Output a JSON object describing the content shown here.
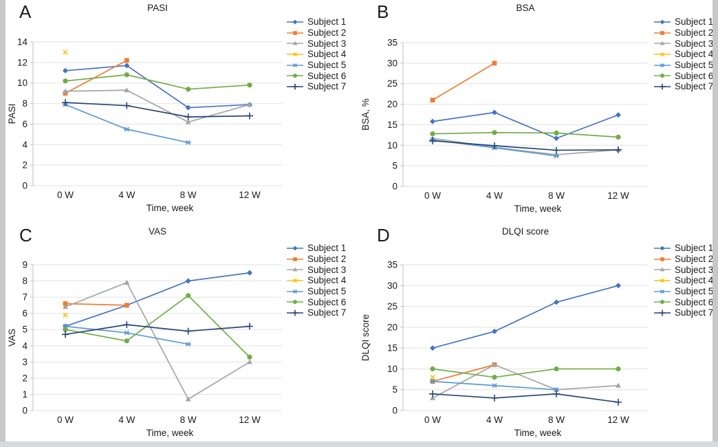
{
  "figure": {
    "x_axis_title": "Time, week",
    "x_categories": [
      "0 W",
      "4 W",
      "8 W",
      "12 W"
    ],
    "subjects": [
      {
        "name": "Subject 1",
        "color": "#4472C4",
        "marker": "diamond"
      },
      {
        "name": "Subject 2",
        "color": "#ED7D31",
        "marker": "square"
      },
      {
        "name": "Subject 3",
        "color": "#A5A5A5",
        "marker": "triangle"
      },
      {
        "name": "Subject 4",
        "color": "#FFC000",
        "marker": "x"
      },
      {
        "name": "Subject 5",
        "color": "#5B9BD5",
        "marker": "asterisk"
      },
      {
        "name": "Subject 6",
        "color": "#70AD47",
        "marker": "circle"
      },
      {
        "name": "Subject 7",
        "color": "#264478",
        "marker": "plus"
      }
    ],
    "gridline_color": "#e2e2e2",
    "axis_color": "#bfbfbf"
  },
  "chart_data": [
    {
      "type": "line",
      "letter": "A",
      "title": "PASI",
      "ylabel": "PASI",
      "xlabel": "Time, week",
      "categories": [
        "0 W",
        "4 W",
        "8 W",
        "12 W"
      ],
      "ylim": [
        0,
        14
      ],
      "ytick_step": 2,
      "grid": true,
      "legend_position": "right",
      "series": [
        {
          "name": "Subject 1",
          "values": [
            11.2,
            11.7,
            7.6,
            7.9
          ]
        },
        {
          "name": "Subject 2",
          "values": [
            9.0,
            12.2,
            null,
            null
          ]
        },
        {
          "name": "Subject 3",
          "values": [
            9.2,
            9.3,
            6.2,
            7.9
          ]
        },
        {
          "name": "Subject 4",
          "values": [
            13.0,
            null,
            null,
            null
          ]
        },
        {
          "name": "Subject 5",
          "values": [
            7.9,
            5.5,
            4.2,
            null
          ]
        },
        {
          "name": "Subject 6",
          "values": [
            10.2,
            10.8,
            9.4,
            9.8
          ]
        },
        {
          "name": "Subject 7",
          "values": [
            8.1,
            7.8,
            6.7,
            6.8
          ]
        }
      ]
    },
    {
      "type": "line",
      "letter": "B",
      "title": "BSA",
      "ylabel": "BSA, %",
      "xlabel": "Time, week",
      "categories": [
        "0 W",
        "4 W",
        "8 W",
        "12 W"
      ],
      "ylim": [
        0,
        35
      ],
      "ytick_step": 5,
      "grid": true,
      "legend_position": "right",
      "series": [
        {
          "name": "Subject 1",
          "values": [
            15.8,
            18,
            11.7,
            17.4
          ]
        },
        {
          "name": "Subject 2",
          "values": [
            21,
            30,
            null,
            null
          ]
        },
        {
          "name": "Subject 3",
          "values": [
            11.7,
            9.5,
            7.7,
            8.9
          ]
        },
        {
          "name": "Subject 4",
          "values": [
            null,
            null,
            null,
            null
          ]
        },
        {
          "name": "Subject 5",
          "values": [
            11.3,
            9.4,
            7.4,
            null
          ]
        },
        {
          "name": "Subject 6",
          "values": [
            12.8,
            13.1,
            13,
            12
          ]
        },
        {
          "name": "Subject 7",
          "values": [
            11.1,
            9.9,
            8.8,
            8.9
          ]
        }
      ]
    },
    {
      "type": "line",
      "letter": "C",
      "title": "VAS",
      "ylabel": "VAS",
      "xlabel": "Time, week",
      "categories": [
        "0 W",
        "4 W",
        "8 W",
        "12 W"
      ],
      "ylim": [
        0,
        9
      ],
      "ytick_step": 1,
      "grid": true,
      "legend_position": "right",
      "series": [
        {
          "name": "Subject 1",
          "values": [
            5.2,
            6.5,
            8.0,
            8.5
          ]
        },
        {
          "name": "Subject 2",
          "values": [
            6.6,
            6.5,
            null,
            null
          ]
        },
        {
          "name": "Subject 3",
          "values": [
            6.4,
            7.9,
            0.7,
            3.0
          ]
        },
        {
          "name": "Subject 4",
          "values": [
            5.9,
            null,
            null,
            null
          ]
        },
        {
          "name": "Subject 5",
          "values": [
            5.2,
            4.8,
            4.1,
            null
          ]
        },
        {
          "name": "Subject 6",
          "values": [
            5.0,
            4.3,
            7.1,
            3.3
          ]
        },
        {
          "name": "Subject 7",
          "values": [
            4.7,
            5.3,
            4.9,
            5.2
          ]
        }
      ]
    },
    {
      "type": "line",
      "letter": "D",
      "title": "DLQI score",
      "ylabel": "DLQI score",
      "xlabel": "Time, week",
      "categories": [
        "0 W",
        "4 W",
        "8 W",
        "12 W"
      ],
      "ylim": [
        0,
        35
      ],
      "ytick_step": 5,
      "grid": true,
      "legend_position": "right",
      "series": [
        {
          "name": "Subject 1",
          "values": [
            15,
            19,
            26,
            30
          ]
        },
        {
          "name": "Subject 2",
          "values": [
            7,
            11,
            null,
            null
          ]
        },
        {
          "name": "Subject 3",
          "values": [
            3,
            11,
            5,
            6
          ]
        },
        {
          "name": "Subject 4",
          "values": [
            8,
            null,
            null,
            null
          ]
        },
        {
          "name": "Subject 5",
          "values": [
            7,
            6,
            5,
            null
          ]
        },
        {
          "name": "Subject 6",
          "values": [
            10,
            8,
            10,
            10
          ]
        },
        {
          "name": "Subject 7",
          "values": [
            4,
            3,
            4,
            2
          ]
        }
      ]
    }
  ]
}
